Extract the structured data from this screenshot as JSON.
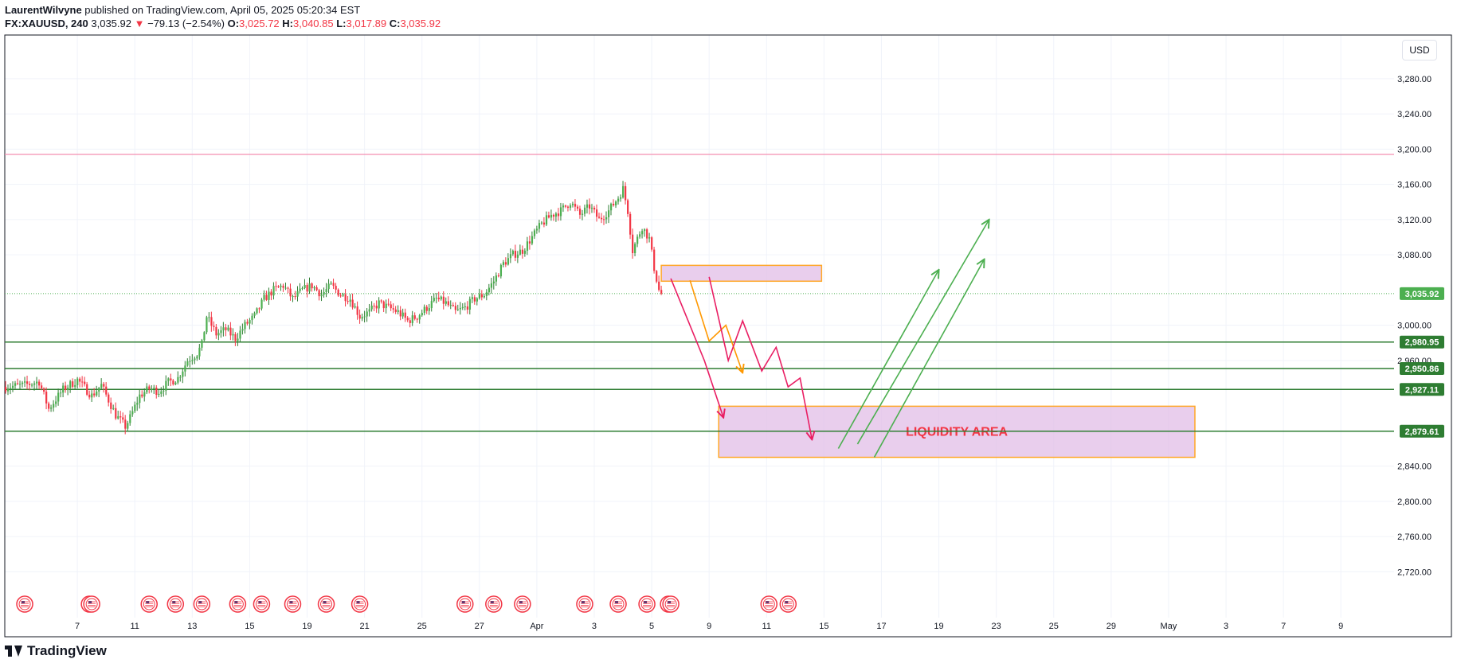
{
  "header": {
    "author": "LaurentWilvyne",
    "published_text": " published on TradingView.com, April 05, 2025 05:20:34 EST",
    "symbol": "FX:XAUUSD, 240",
    "last_price": "3,035.92",
    "change_arrow": "▼",
    "change": "−79.13 (−2.54%)",
    "ohlc": [
      {
        "label": "O:",
        "value": "3,025.72"
      },
      {
        "label": "H:",
        "value": "3,040.85"
      },
      {
        "label": "L:",
        "value": "3,017.89"
      },
      {
        "label": "C:",
        "value": "3,035.92"
      }
    ]
  },
  "currency": "USD",
  "footer": {
    "brand": "TradingView"
  },
  "colors": {
    "up": "#22ab94",
    "up_body": "#2e7d32",
    "down": "#f23645",
    "level_line": "#2e7d32",
    "resistance_line": "#f48fb1",
    "zone_fill": "#e1bee7",
    "zone_border": "#ffa726",
    "arrow_pink": "#e91e63",
    "arrow_orange": "#ff9800",
    "arrow_green": "#4caf50"
  },
  "chart_data": {
    "type": "candlestick",
    "symbol": "XAUUSD",
    "interval": "240",
    "ylim": [
      2700,
      3320
    ],
    "y_ticks": [
      "3,280.00",
      "3,240.00",
      "3,200.00",
      "3,160.00",
      "3,120.00",
      "3,080.00",
      "3,000.00",
      "2,960.00",
      "2,840.00",
      "2,800.00",
      "2,760.00",
      "2,720.00"
    ],
    "y_tick_values": [
      3280,
      3240,
      3200,
      3160,
      3120,
      3080,
      3000,
      2960,
      2840,
      2800,
      2760,
      2720
    ],
    "x_ticks": [
      "7",
      "11",
      "13",
      "15",
      "19",
      "21",
      "25",
      "27",
      "Apr",
      "3",
      "5",
      "9",
      "11",
      "15",
      "17",
      "19",
      "23",
      "25",
      "29",
      "May",
      "3",
      "7",
      "9"
    ],
    "x_tick_bars": [
      30,
      54,
      78,
      102,
      126,
      150,
      174,
      198,
      222,
      246,
      270,
      294,
      318,
      342,
      366,
      390,
      414,
      438,
      462,
      486,
      510,
      534,
      558
    ],
    "price_labels": [
      {
        "text": "3,035.92",
        "value": 3035.92
      },
      {
        "text": "2,980.95",
        "value": 2980.95
      },
      {
        "text": "2,950.86",
        "value": 2950.86
      },
      {
        "text": "2,927.11",
        "value": 2927.11
      },
      {
        "text": "2,879.61",
        "value": 2879.61
      }
    ],
    "horizontal_levels": [
      2980.95,
      2950.86,
      2927.11,
      2879.61
    ],
    "resistance_level": 3194,
    "current_price": 3035.92,
    "waypoints": [
      [
        0,
        2930
      ],
      [
        8,
        2932
      ],
      [
        14,
        2936
      ],
      [
        18,
        2905
      ],
      [
        24,
        2927
      ],
      [
        30,
        2938
      ],
      [
        36,
        2920
      ],
      [
        40,
        2932
      ],
      [
        46,
        2898
      ],
      [
        50,
        2885
      ],
      [
        52,
        2895
      ],
      [
        56,
        2920
      ],
      [
        60,
        2928
      ],
      [
        64,
        2925
      ],
      [
        68,
        2935
      ],
      [
        72,
        2940
      ],
      [
        76,
        2960
      ],
      [
        80,
        2968
      ],
      [
        82,
        2978
      ],
      [
        84,
        3010
      ],
      [
        88,
        2990
      ],
      [
        92,
        2995
      ],
      [
        96,
        2985
      ],
      [
        100,
        3000
      ],
      [
        104,
        3010
      ],
      [
        108,
        3030
      ],
      [
        112,
        3040
      ],
      [
        116,
        3045
      ],
      [
        120,
        3030
      ],
      [
        124,
        3040
      ],
      [
        128,
        3045
      ],
      [
        132,
        3035
      ],
      [
        136,
        3045
      ],
      [
        140,
        3035
      ],
      [
        144,
        3030
      ],
      [
        148,
        3010
      ],
      [
        152,
        3015
      ],
      [
        156,
        3025
      ],
      [
        160,
        3020
      ],
      [
        164,
        3015
      ],
      [
        168,
        3005
      ],
      [
        172,
        3010
      ],
      [
        176,
        3020
      ],
      [
        180,
        3030
      ],
      [
        184,
        3025
      ],
      [
        188,
        3015
      ],
      [
        192,
        3020
      ],
      [
        196,
        3030
      ],
      [
        200,
        3035
      ],
      [
        204,
        3050
      ],
      [
        208,
        3070
      ],
      [
        212,
        3080
      ],
      [
        216,
        3085
      ],
      [
        220,
        3100
      ],
      [
        224,
        3115
      ],
      [
        228,
        3125
      ],
      [
        232,
        3130
      ],
      [
        236,
        3140
      ],
      [
        240,
        3125
      ],
      [
        244,
        3135
      ],
      [
        248,
        3120
      ],
      [
        252,
        3130
      ],
      [
        256,
        3145
      ],
      [
        258,
        3155
      ],
      [
        260,
        3130
      ],
      [
        262,
        3085
      ],
      [
        266,
        3112
      ],
      [
        269,
        3098
      ],
      [
        271,
        3065
      ],
      [
        273,
        3040
      ],
      [
        274,
        3035.92
      ]
    ],
    "zones": [
      {
        "x0": 274,
        "x1": 341,
        "y0": 3050,
        "y1": 3068,
        "label": ""
      },
      {
        "x0": 298,
        "x1": 497,
        "y0": 2850,
        "y1": 2908,
        "label": "LIQUIDITY AREA"
      }
    ],
    "zone_label": "LIQUIDITY AREA",
    "projection_paths": [
      {
        "color": "arrow_pink",
        "points": [
          [
            278,
            3053
          ],
          [
            292,
            2960
          ],
          [
            300,
            2895
          ]
        ]
      },
      {
        "color": "arrow_orange",
        "points": [
          [
            286,
            3051
          ],
          [
            294,
            2982
          ],
          [
            301,
            3000
          ],
          [
            308,
            2946
          ]
        ]
      },
      {
        "color": "arrow_pink",
        "points": [
          [
            294,
            3055
          ],
          [
            302,
            2960
          ],
          [
            308,
            3005
          ],
          [
            316,
            2948
          ],
          [
            322,
            2975
          ],
          [
            327,
            2930
          ],
          [
            332,
            2940
          ],
          [
            337,
            2870
          ]
        ]
      },
      {
        "color": "arrow_green",
        "points": [
          [
            348,
            2860
          ],
          [
            390,
            3063
          ]
        ]
      },
      {
        "color": "arrow_green",
        "points": [
          [
            356,
            2865
          ],
          [
            411,
            3120
          ]
        ]
      },
      {
        "color": "arrow_green",
        "points": [
          [
            363,
            2850
          ],
          [
            409,
            3075
          ]
        ]
      }
    ],
    "event_markers_bars": [
      8,
      35,
      36,
      60,
      71,
      82,
      97,
      107,
      120,
      134,
      148,
      192,
      204,
      216,
      242,
      256,
      268,
      277,
      278,
      319,
      327
    ]
  }
}
